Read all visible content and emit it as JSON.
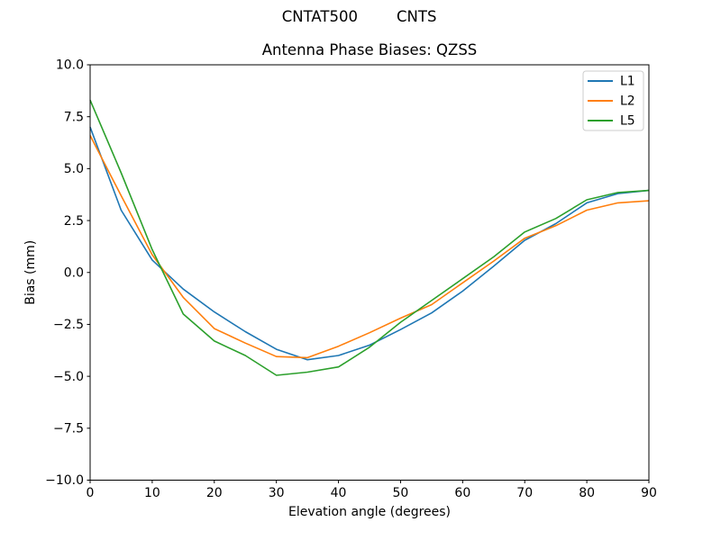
{
  "figure": {
    "suptitle_left": "CNTAT500",
    "suptitle_right": "CNTS",
    "title": "Antenna Phase Biases: QZSS",
    "xlabel": "Elevation angle (degrees)",
    "ylabel": "Bias (mm)"
  },
  "chart_data": {
    "type": "line",
    "title": "Antenna Phase Biases: QZSS",
    "suptitle": "CNTAT500        CNTS",
    "xlabel": "Elevation angle (degrees)",
    "ylabel": "Bias (mm)",
    "xlim": [
      0,
      90
    ],
    "ylim": [
      -10,
      10
    ],
    "xticks": [
      0,
      10,
      20,
      30,
      40,
      50,
      60,
      70,
      80,
      90
    ],
    "yticks": [
      -10.0,
      -7.5,
      -5.0,
      -2.5,
      0.0,
      2.5,
      5.0,
      7.5,
      10.0
    ],
    "grid": false,
    "legend_position": "upper right",
    "x": [
      0,
      5,
      10,
      15,
      20,
      25,
      30,
      35,
      40,
      45,
      50,
      55,
      60,
      65,
      70,
      75,
      80,
      85,
      90
    ],
    "series": [
      {
        "name": "L1",
        "color": "#1f77b4",
        "values": [
          7.0,
          3.0,
          0.6,
          -0.8,
          -1.9,
          -2.85,
          -3.7,
          -4.2,
          -4.0,
          -3.5,
          -2.75,
          -1.95,
          -0.9,
          0.3,
          1.55,
          2.35,
          3.35,
          3.8,
          3.95
        ]
      },
      {
        "name": "L2",
        "color": "#ff7f0e",
        "values": [
          6.6,
          3.7,
          0.85,
          -1.2,
          -2.7,
          -3.4,
          -4.05,
          -4.1,
          -3.55,
          -2.9,
          -2.2,
          -1.55,
          -0.5,
          0.55,
          1.65,
          2.25,
          3.0,
          3.35,
          3.45
        ]
      },
      {
        "name": "L5",
        "color": "#2ca02c",
        "values": [
          8.3,
          4.8,
          1.1,
          -2.0,
          -3.3,
          -4.0,
          -4.95,
          -4.8,
          -4.55,
          -3.6,
          -2.4,
          -1.35,
          -0.3,
          0.75,
          1.95,
          2.6,
          3.5,
          3.85,
          3.95
        ]
      }
    ]
  }
}
